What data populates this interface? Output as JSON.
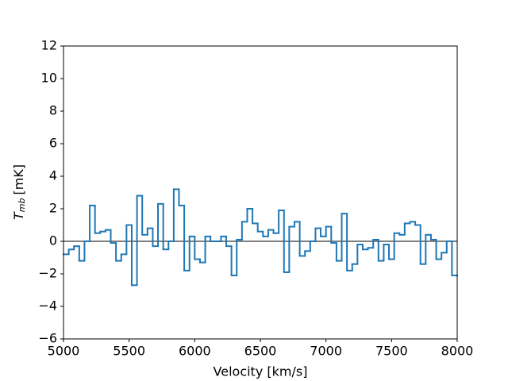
{
  "chart_data": {
    "type": "step",
    "x_label": "Velocity [km/s]",
    "y_label": {
      "symbol": "T",
      "subscript": "mb",
      "unit": "[mK]"
    },
    "x": [
      5000,
      5040,
      5080,
      5120,
      5160,
      5200,
      5240,
      5280,
      5320,
      5360,
      5400,
      5440,
      5480,
      5520,
      5560,
      5600,
      5640,
      5680,
      5720,
      5760,
      5800,
      5840,
      5880,
      5920,
      5960,
      6000,
      6040,
      6080,
      6120,
      6160,
      6200,
      6240,
      6280,
      6320,
      6360,
      6400,
      6440,
      6480,
      6520,
      6560,
      6600,
      6640,
      6680,
      6720,
      6760,
      6800,
      6840,
      6880,
      6920,
      6960,
      7000,
      7040,
      7080,
      7120,
      7160,
      7200,
      7240,
      7280,
      7320,
      7360,
      7400,
      7440,
      7480,
      7520,
      7560,
      7600,
      7640,
      7680,
      7720,
      7760,
      7800,
      7840,
      7880,
      7920,
      7960
    ],
    "values": [
      -0.8,
      -0.5,
      -0.3,
      -1.2,
      0.0,
      2.2,
      0.5,
      0.6,
      0.7,
      -0.1,
      -1.2,
      -0.8,
      1.0,
      -2.7,
      2.8,
      0.4,
      0.8,
      -0.3,
      2.3,
      -0.5,
      0.0,
      3.2,
      2.2,
      -1.8,
      0.3,
      -1.1,
      -1.3,
      0.3,
      0.0,
      0.0,
      0.3,
      -0.3,
      -2.1,
      0.1,
      1.2,
      2.0,
      1.1,
      0.6,
      0.3,
      0.7,
      0.5,
      1.9,
      -1.9,
      0.9,
      1.2,
      -0.9,
      -0.6,
      0.0,
      0.8,
      0.3,
      0.9,
      -0.1,
      -1.2,
      1.7,
      -1.8,
      -1.4,
      -0.2,
      -0.5,
      -0.4,
      0.1,
      -1.2,
      -0.2,
      -1.1,
      0.5,
      0.4,
      1.1,
      1.2,
      1.0,
      -1.4,
      0.4,
      0.1,
      -1.1,
      -0.7,
      0.0,
      -2.1
    ],
    "color": "#1f77b4",
    "baseline_color": "#808080",
    "xlim": [
      5000,
      8000
    ],
    "ylim": [
      -6,
      12
    ],
    "xticks": [
      5000,
      5500,
      6000,
      6500,
      7000,
      7500,
      8000
    ],
    "yticks": [
      {
        "value": -6,
        "label": "−6"
      },
      {
        "value": -4,
        "label": "−4"
      },
      {
        "value": -2,
        "label": "−2"
      },
      0,
      2,
      4,
      6,
      8,
      10,
      12
    ]
  }
}
